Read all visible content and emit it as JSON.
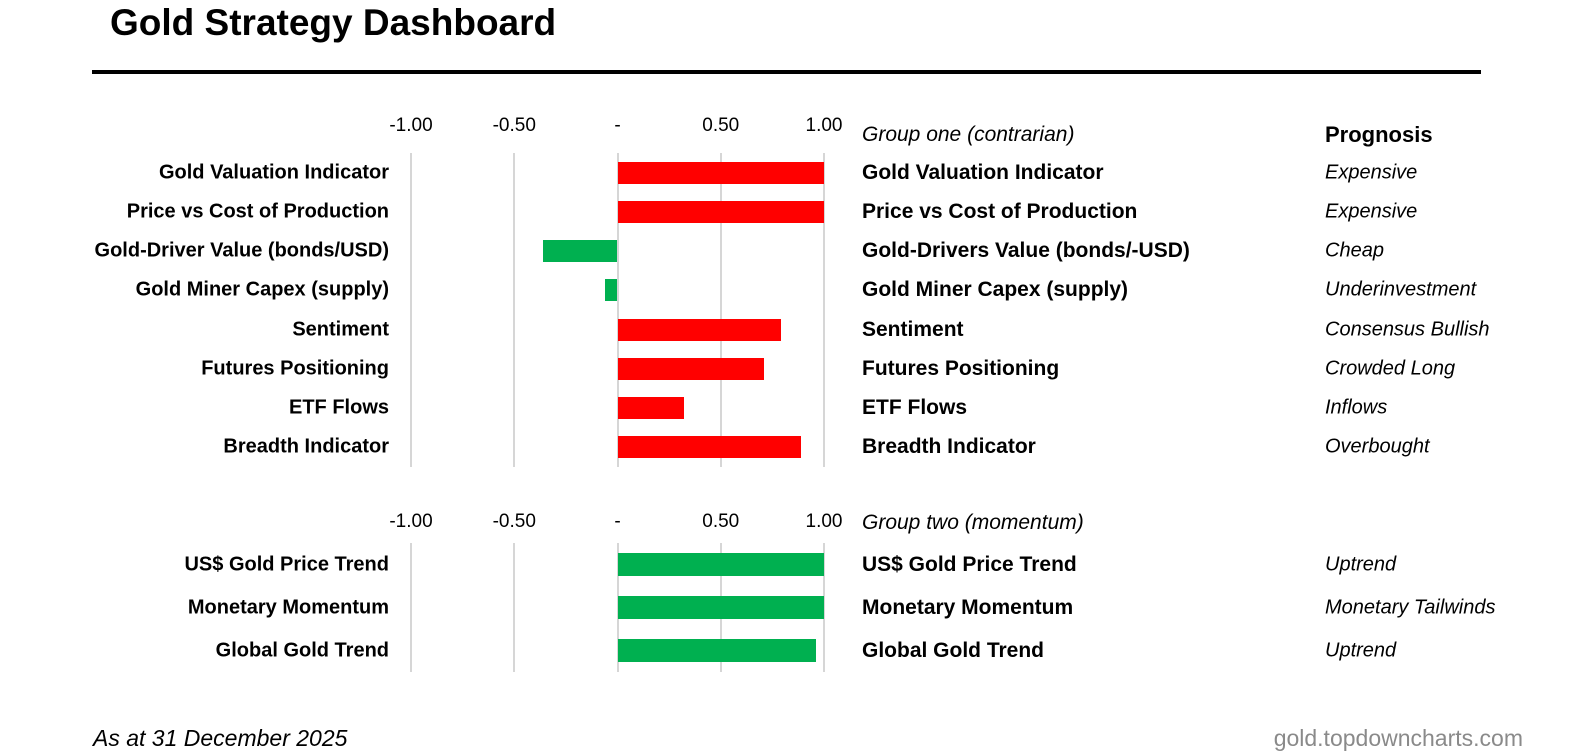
{
  "title": "Gold Strategy Dashboard",
  "footer": {
    "as_at": "As at 31 December 2025",
    "website": "gold.topdowncharts.com"
  },
  "colors": {
    "red": "#ff0000",
    "green": "#00b050",
    "gridline": "#d6d6d6",
    "website_gray": "#8a8a8a"
  },
  "chart_data": [
    {
      "type": "bar",
      "orientation": "horizontal",
      "group_label": "Group one (contrarian)",
      "prognosis_header": "Prognosis",
      "xlim": [
        -1.06,
        1.06
      ],
      "grid": true,
      "x_ticks": {
        "labels": [
          "-1.00",
          "-0.50",
          "-",
          "0.50",
          "1.00"
        ],
        "values": [
          -1,
          -0.5,
          0,
          0.5,
          1
        ]
      },
      "rows": [
        {
          "label_left": "Gold Valuation Indicator",
          "label_right": "Gold Valuation Indicator",
          "value": 1.0,
          "color": "red",
          "prognosis": "Expensive"
        },
        {
          "label_left": "Price vs Cost of Production",
          "label_right": "Price vs Cost of Production",
          "value": 1.0,
          "color": "red",
          "prognosis": "Expensive"
        },
        {
          "label_left": "Gold-Driver Value (bonds/USD)",
          "label_right": "Gold-Drivers Value (bonds/-USD)",
          "value": -0.36,
          "color": "green",
          "prognosis": "Cheap"
        },
        {
          "label_left": "Gold Miner Capex (supply)",
          "label_right": "Gold Miner Capex (supply)",
          "value": -0.06,
          "color": "green",
          "prognosis": "Underinvestment"
        },
        {
          "label_left": "Sentiment",
          "label_right": "Sentiment",
          "value": 0.79,
          "color": "red",
          "prognosis": "Consensus Bullish"
        },
        {
          "label_left": "Futures Positioning",
          "label_right": "Futures Positioning",
          "value": 0.71,
          "color": "red",
          "prognosis": "Crowded Long"
        },
        {
          "label_left": "ETF Flows",
          "label_right": "ETF Flows",
          "value": 0.32,
          "color": "red",
          "prognosis": "Inflows"
        },
        {
          "label_left": "Breadth Indicator",
          "label_right": "Breadth Indicator",
          "value": 0.89,
          "color": "red",
          "prognosis": "Overbought"
        }
      ]
    },
    {
      "type": "bar",
      "orientation": "horizontal",
      "group_label": "Group two (momentum)",
      "prognosis_header": "",
      "xlim": [
        -1.06,
        1.06
      ],
      "grid": true,
      "x_ticks": {
        "labels": [
          "-1.00",
          "-0.50",
          "-",
          "0.50",
          "1.00"
        ],
        "values": [
          -1,
          -0.5,
          0,
          0.5,
          1
        ]
      },
      "rows": [
        {
          "label_left": "US$ Gold Price Trend",
          "label_right": "US$ Gold Price Trend",
          "value": 1.0,
          "color": "green",
          "prognosis": "Uptrend"
        },
        {
          "label_left": "Monetary Momentum",
          "label_right": "Monetary Momentum",
          "value": 1.0,
          "color": "green",
          "prognosis": "Monetary Tailwinds"
        },
        {
          "label_left": "Global Gold Trend",
          "label_right": "Global Gold Trend",
          "value": 0.96,
          "color": "green",
          "prognosis": "Uptrend"
        }
      ]
    }
  ]
}
